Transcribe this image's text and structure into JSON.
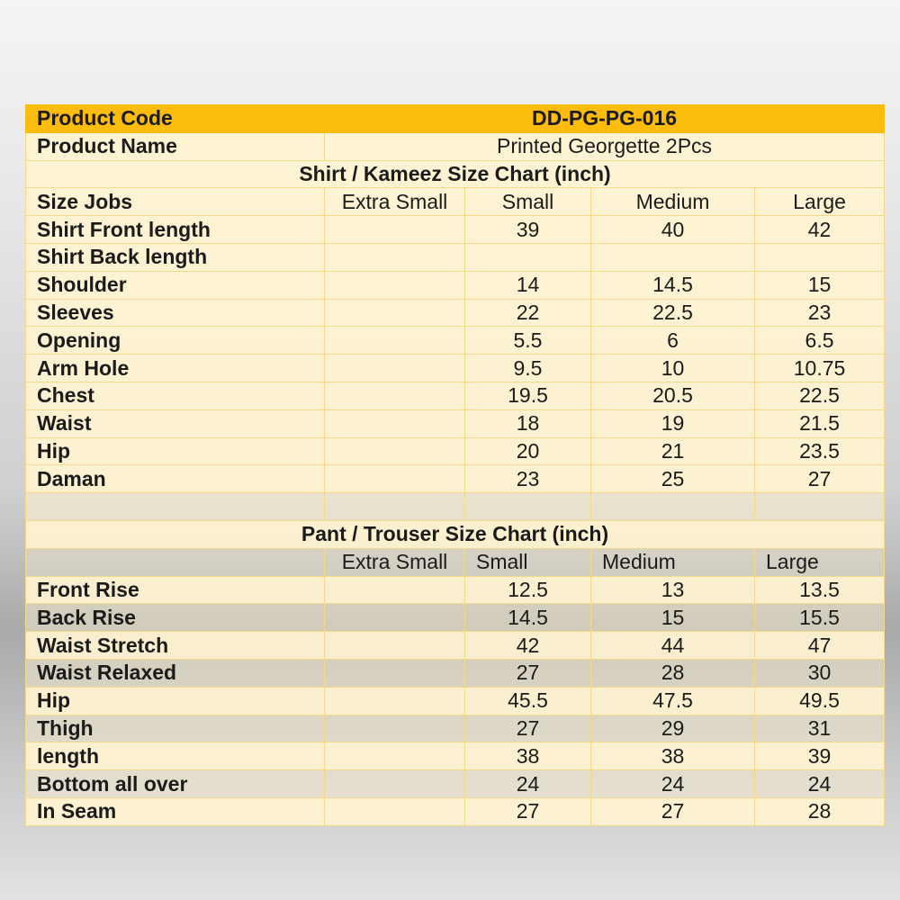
{
  "product": {
    "code_label": "Product Code",
    "code_value": "DD-PG-PG-016",
    "name_label": "Product Name",
    "name_value": "Printed Georgette 2Pcs"
  },
  "shirt": {
    "title": "Shirt / Kameez Size Chart (inch)",
    "corner": "Size Jobs",
    "columns": [
      "Extra Small",
      "Small",
      "Medium",
      "Large"
    ],
    "rows": [
      {
        "label": "Shirt Front length",
        "values": [
          "",
          "39",
          "40",
          "42"
        ]
      },
      {
        "label": "Shirt Back length",
        "values": [
          "",
          "",
          "",
          ""
        ]
      },
      {
        "label": "Shoulder",
        "values": [
          "",
          "14",
          "14.5",
          "15"
        ]
      },
      {
        "label": "Sleeves",
        "values": [
          "",
          "22",
          "22.5",
          "23"
        ]
      },
      {
        "label": "Opening",
        "values": [
          "",
          "5.5",
          "6",
          "6.5"
        ]
      },
      {
        "label": "Arm Hole",
        "values": [
          "",
          "9.5",
          "10",
          "10.75"
        ]
      },
      {
        "label": "Chest",
        "values": [
          "",
          "19.5",
          "20.5",
          "22.5"
        ]
      },
      {
        "label": "Waist",
        "values": [
          "",
          "18",
          "19",
          "21.5"
        ]
      },
      {
        "label": "Hip",
        "values": [
          "",
          "20",
          "21",
          "23.5"
        ]
      },
      {
        "label": "Daman",
        "values": [
          "",
          "23",
          "25",
          "27"
        ]
      }
    ]
  },
  "pant": {
    "title": "Pant / Trouser Size Chart (inch)",
    "columns": [
      "Extra Small",
      "Small",
      "Medium",
      "Large"
    ],
    "rows": [
      {
        "label": "Front Rise",
        "values": [
          "",
          "12.5",
          "13",
          "13.5"
        ]
      },
      {
        "label": "Back Rise",
        "values": [
          "",
          "14.5",
          "15",
          "15.5"
        ]
      },
      {
        "label": "Waist Stretch",
        "values": [
          "",
          "42",
          "44",
          "47"
        ]
      },
      {
        "label": "Waist Relaxed",
        "values": [
          "",
          "27",
          "28",
          "30"
        ]
      },
      {
        "label": "Hip",
        "values": [
          "",
          "45.5",
          "47.5",
          "49.5"
        ]
      },
      {
        "label": "Thigh",
        "values": [
          "",
          "27",
          "29",
          "31"
        ]
      },
      {
        "label": "length",
        "values": [
          "",
          "38",
          "38",
          "39"
        ]
      },
      {
        "label": "Bottom all over",
        "values": [
          "",
          "24",
          "24",
          "24"
        ]
      },
      {
        "label": "In Seam",
        "values": [
          "",
          "27",
          "27",
          "28"
        ]
      }
    ]
  },
  "colors": {
    "header_bg": "#fcbc0d",
    "cell_bg": "#fff4d0",
    "border": "#f3d98a"
  }
}
